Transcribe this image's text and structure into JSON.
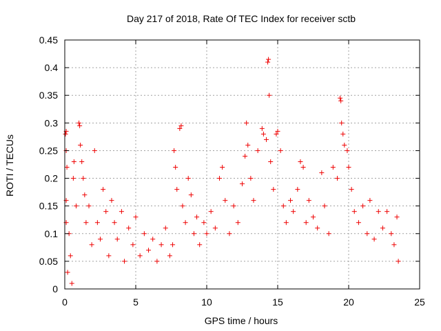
{
  "chart_data": {
    "type": "scatter",
    "title": "Day 217 of 2018, Rate Of TEC Index for receiver sctb",
    "xlabel": "GPS time / hours",
    "ylabel": "ROTI / TECUs",
    "xlim": [
      0,
      25
    ],
    "ylim": [
      0,
      0.45
    ],
    "xticks": [
      0,
      5,
      10,
      15,
      20,
      25
    ],
    "xtick_labels": [
      "0",
      "5",
      "10",
      "15",
      "20",
      "25"
    ],
    "yticks": [
      0,
      0.05,
      0.1,
      0.15,
      0.2,
      0.25,
      0.3,
      0.35,
      0.4,
      0.45
    ],
    "ytick_labels": [
      "0",
      "0.05",
      "0.1",
      "0.15",
      "0.2",
      "0.25",
      "0.3",
      "0.35",
      "0.4",
      "0.45"
    ],
    "grid": true,
    "marker": "+",
    "color": "#ee0000",
    "series": [
      {
        "name": "ROTI",
        "points": [
          [
            0.05,
            0.28
          ],
          [
            0.1,
            0.285
          ],
          [
            0.1,
            0.25
          ],
          [
            0.15,
            0.22
          ],
          [
            0.1,
            0.16
          ],
          [
            0.1,
            0.12
          ],
          [
            0.3,
            0.1
          ],
          [
            0.4,
            0.06
          ],
          [
            0.2,
            0.03
          ],
          [
            0.5,
            0.01
          ],
          [
            0.6,
            0.2
          ],
          [
            0.65,
            0.23
          ],
          [
            0.8,
            0.15
          ],
          [
            1.0,
            0.3
          ],
          [
            1.05,
            0.295
          ],
          [
            1.1,
            0.26
          ],
          [
            1.2,
            0.23
          ],
          [
            1.3,
            0.2
          ],
          [
            1.4,
            0.17
          ],
          [
            1.5,
            0.12
          ],
          [
            1.7,
            0.15
          ],
          [
            1.9,
            0.08
          ],
          [
            2.1,
            0.25
          ],
          [
            2.3,
            0.12
          ],
          [
            2.5,
            0.09
          ],
          [
            2.7,
            0.18
          ],
          [
            2.9,
            0.14
          ],
          [
            3.1,
            0.06
          ],
          [
            3.3,
            0.16
          ],
          [
            3.5,
            0.12
          ],
          [
            3.7,
            0.09
          ],
          [
            4.0,
            0.14
          ],
          [
            4.2,
            0.05
          ],
          [
            4.5,
            0.11
          ],
          [
            4.8,
            0.08
          ],
          [
            5.0,
            0.13
          ],
          [
            5.3,
            0.06
          ],
          [
            5.6,
            0.1
          ],
          [
            5.9,
            0.07
          ],
          [
            6.2,
            0.09
          ],
          [
            6.5,
            0.05
          ],
          [
            6.8,
            0.08
          ],
          [
            7.1,
            0.11
          ],
          [
            7.4,
            0.06
          ],
          [
            7.6,
            0.08
          ],
          [
            7.7,
            0.25
          ],
          [
            7.8,
            0.22
          ],
          [
            7.9,
            0.18
          ],
          [
            8.1,
            0.29
          ],
          [
            8.2,
            0.295
          ],
          [
            8.3,
            0.15
          ],
          [
            8.5,
            0.12
          ],
          [
            8.7,
            0.2
          ],
          [
            8.9,
            0.17
          ],
          [
            9.1,
            0.1
          ],
          [
            9.3,
            0.13
          ],
          [
            9.5,
            0.08
          ],
          [
            9.8,
            0.12
          ],
          [
            10.0,
            0.1
          ],
          [
            10.3,
            0.14
          ],
          [
            10.6,
            0.11
          ],
          [
            10.9,
            0.2
          ],
          [
            11.1,
            0.22
          ],
          [
            11.3,
            0.16
          ],
          [
            11.6,
            0.1
          ],
          [
            11.9,
            0.15
          ],
          [
            12.2,
            0.12
          ],
          [
            12.5,
            0.19
          ],
          [
            12.7,
            0.24
          ],
          [
            12.8,
            0.3
          ],
          [
            12.9,
            0.26
          ],
          [
            13.1,
            0.2
          ],
          [
            13.3,
            0.16
          ],
          [
            13.6,
            0.25
          ],
          [
            13.9,
            0.29
          ],
          [
            14.0,
            0.28
          ],
          [
            14.2,
            0.27
          ],
          [
            14.3,
            0.41
          ],
          [
            14.35,
            0.415
          ],
          [
            14.4,
            0.35
          ],
          [
            14.5,
            0.23
          ],
          [
            14.7,
            0.18
          ],
          [
            14.9,
            0.28
          ],
          [
            15.0,
            0.285
          ],
          [
            15.2,
            0.25
          ],
          [
            15.4,
            0.15
          ],
          [
            15.6,
            0.12
          ],
          [
            15.9,
            0.16
          ],
          [
            16.1,
            0.14
          ],
          [
            16.4,
            0.18
          ],
          [
            16.6,
            0.23
          ],
          [
            16.8,
            0.22
          ],
          [
            17.0,
            0.12
          ],
          [
            17.2,
            0.16
          ],
          [
            17.5,
            0.13
          ],
          [
            17.8,
            0.11
          ],
          [
            18.1,
            0.21
          ],
          [
            18.3,
            0.15
          ],
          [
            18.6,
            0.1
          ],
          [
            18.9,
            0.22
          ],
          [
            19.2,
            0.2
          ],
          [
            19.4,
            0.345
          ],
          [
            19.45,
            0.34
          ],
          [
            19.5,
            0.3
          ],
          [
            19.6,
            0.28
          ],
          [
            19.7,
            0.26
          ],
          [
            19.9,
            0.25
          ],
          [
            20.0,
            0.22
          ],
          [
            20.2,
            0.18
          ],
          [
            20.4,
            0.14
          ],
          [
            20.7,
            0.12
          ],
          [
            21.0,
            0.15
          ],
          [
            21.3,
            0.1
          ],
          [
            21.5,
            0.16
          ],
          [
            21.8,
            0.09
          ],
          [
            22.1,
            0.14
          ],
          [
            22.4,
            0.11
          ],
          [
            22.7,
            0.14
          ],
          [
            23.0,
            0.1
          ],
          [
            23.2,
            0.08
          ],
          [
            23.4,
            0.13
          ],
          [
            23.5,
            0.05
          ]
        ]
      }
    ]
  }
}
